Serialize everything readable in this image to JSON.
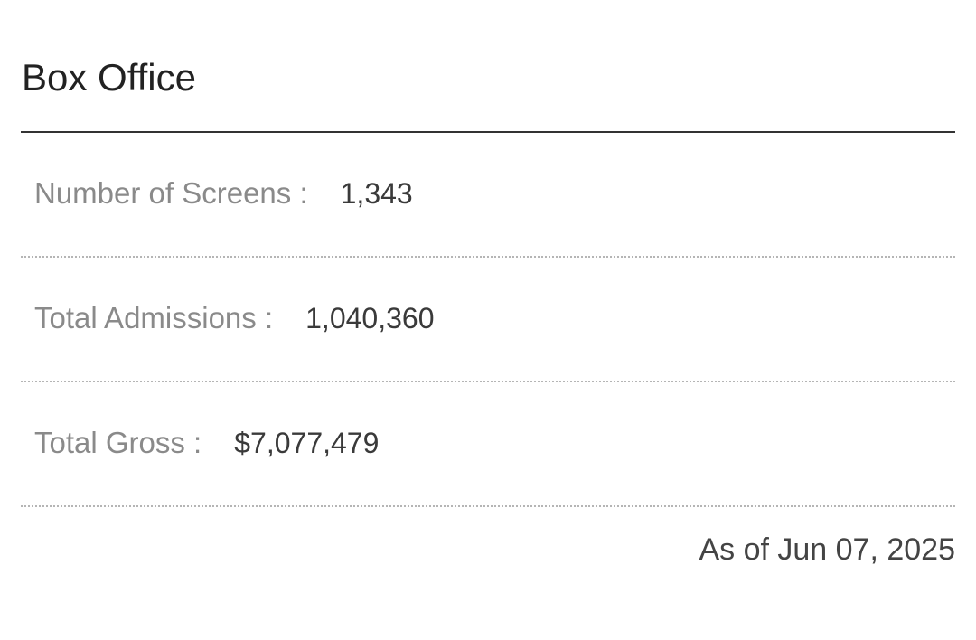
{
  "box_office": {
    "title": "Box Office",
    "stats": [
      {
        "label": "Number of Screens :",
        "value": "1,343"
      },
      {
        "label": "Total Admissions :",
        "value": "1,040,360"
      },
      {
        "label": "Total Gross :",
        "value": "$7,077,479"
      }
    ],
    "as_of": "As of Jun 07, 2025"
  },
  "colors": {
    "title": "#222222",
    "label": "#8a8a8a",
    "value": "#3a3a3a",
    "rule": "#333333",
    "dotted_rule": "#b5b5b5"
  }
}
